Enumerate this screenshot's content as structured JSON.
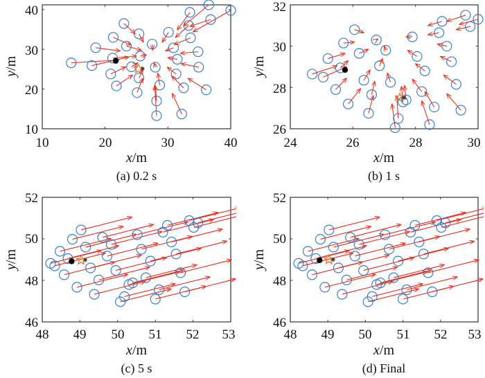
{
  "colors": {
    "agent": "#3a7fd0",
    "velocity": "#e8301e",
    "frame": "#333333",
    "leader": "#000000",
    "target": "#e07020"
  },
  "chart_data": [
    {
      "type": "scatter",
      "panel": "a",
      "caption": "(a) 0.2 s",
      "xlabel_var": "x",
      "ylabel_var": "y",
      "unit": "m",
      "xlim": [
        10,
        40
      ],
      "ylim": [
        10,
        41.2
      ],
      "xticks": [
        10,
        20,
        30,
        40
      ],
      "yticks": [
        10,
        20,
        30,
        40
      ],
      "xtick_labels": [
        "10",
        "20",
        "30",
        "40"
      ],
      "ytick_labels": [
        "10",
        "20",
        "30",
        "40"
      ],
      "leader": [
        21.7,
        27.1
      ],
      "target": [
        25.3,
        25.1
      ],
      "agents": [
        [
          14.6,
          26.6,
          22.2,
          27.3
        ],
        [
          17.9,
          25.9,
          23.8,
          28.1
        ],
        [
          18.5,
          30.4,
          22.4,
          29.6
        ],
        [
          21.3,
          33.0,
          24.1,
          31.1
        ],
        [
          23.0,
          36.5,
          24.8,
          33.9
        ],
        [
          25.4,
          33.9,
          26.1,
          31.8
        ],
        [
          21.2,
          27.8,
          25.0,
          28.3
        ],
        [
          23.4,
          30.8,
          25.8,
          29.8
        ],
        [
          20.9,
          23.8,
          23.3,
          25.6
        ],
        [
          21.8,
          20.8,
          24.4,
          23.5
        ],
        [
          24.2,
          25.6,
          25.2,
          26.6
        ],
        [
          25.6,
          28.3,
          26.6,
          28.6
        ],
        [
          25.4,
          22.8,
          26.0,
          24.8
        ],
        [
          25.1,
          19.1,
          26.0,
          22.7
        ],
        [
          27.5,
          31.3,
          27.6,
          29.8
        ],
        [
          28.0,
          25.5,
          27.8,
          26.6
        ],
        [
          28.7,
          21.0,
          28.4,
          24.0
        ],
        [
          28.2,
          17.0,
          28.0,
          20.8
        ],
        [
          28.2,
          13.3,
          27.9,
          21.0
        ],
        [
          30.1,
          34.3,
          29.1,
          31.8
        ],
        [
          30.9,
          30.4,
          29.6,
          29.6
        ],
        [
          31.5,
          27.5,
          30.0,
          27.9
        ],
        [
          31.3,
          23.8,
          29.9,
          25.5
        ],
        [
          32.5,
          20.3,
          30.6,
          23.3
        ],
        [
          32.2,
          13.7,
          30.7,
          18.9
        ],
        [
          33.5,
          39.3,
          31.5,
          34.9
        ],
        [
          33.3,
          36.0,
          31.2,
          33.0
        ],
        [
          33.6,
          32.9,
          31.0,
          31.2
        ],
        [
          34.8,
          29.4,
          32.0,
          29.0
        ],
        [
          34.9,
          25.5,
          32.1,
          26.4
        ],
        [
          36.1,
          19.8,
          33.2,
          22.7
        ],
        [
          36.5,
          41.2,
          32.5,
          35.9
        ],
        [
          36.8,
          37.5,
          33.5,
          35.8
        ],
        [
          40.0,
          39.8,
          34.0,
          34.4
        ]
      ]
    },
    {
      "type": "scatter",
      "panel": "b",
      "caption": "(b) 1 s",
      "xlabel_var": "x",
      "ylabel_var": "y",
      "unit": "m",
      "xlim": [
        24,
        30
      ],
      "ylim": [
        26,
        32
      ],
      "xticks": [
        24,
        26,
        28,
        30
      ],
      "yticks": [
        26,
        28,
        30,
        32
      ],
      "xtick_labels": [
        "24",
        "26",
        "28",
        "30"
      ],
      "ytick_labels": [
        "26",
        "28",
        "30",
        "32"
      ],
      "leader": [
        25.75,
        28.85
      ],
      "target": [
        27.5,
        27.5
      ],
      "agents": [
        [
          24.7,
          28.65,
          25.5,
          29.05
        ],
        [
          25.05,
          28.5,
          25.8,
          29.0
        ],
        [
          25.2,
          29.4,
          25.75,
          29.65
        ],
        [
          25.45,
          27.9,
          25.8,
          28.45
        ],
        [
          25.6,
          28.95,
          25.85,
          29.3
        ],
        [
          25.7,
          30.15,
          26.05,
          30.2
        ],
        [
          25.85,
          27.2,
          26.25,
          27.95
        ],
        [
          26.05,
          30.8,
          26.35,
          30.65
        ],
        [
          26.2,
          29.65,
          26.5,
          29.85
        ],
        [
          26.35,
          28.35,
          26.55,
          28.85
        ],
        [
          26.5,
          26.75,
          26.65,
          27.6
        ],
        [
          26.6,
          27.65,
          26.7,
          28.3
        ],
        [
          26.75,
          30.3,
          26.8,
          30.35
        ],
        [
          26.85,
          29.05,
          26.95,
          29.4
        ],
        [
          27.05,
          29.8,
          27.0,
          30.0
        ],
        [
          27.2,
          28.25,
          27.1,
          28.7
        ],
        [
          27.35,
          26.05,
          27.25,
          27.2
        ],
        [
          27.45,
          26.5,
          27.4,
          27.6
        ],
        [
          27.6,
          27.3,
          27.55,
          28.05
        ],
        [
          27.7,
          27.4,
          27.65,
          28.1
        ],
        [
          27.9,
          30.45,
          27.7,
          30.45
        ],
        [
          28.05,
          29.5,
          27.75,
          29.8
        ],
        [
          28.2,
          27.8,
          27.9,
          28.4
        ],
        [
          28.3,
          28.8,
          28.0,
          29.15
        ],
        [
          28.45,
          26.2,
          28.2,
          27.35
        ],
        [
          28.6,
          27.05,
          28.3,
          27.8
        ],
        [
          28.75,
          30.65,
          28.4,
          30.55
        ],
        [
          28.85,
          31.2,
          28.4,
          31.0
        ],
        [
          29.0,
          30.0,
          28.7,
          30.1
        ],
        [
          29.15,
          29.25,
          28.8,
          29.5
        ],
        [
          29.3,
          28.15,
          28.9,
          28.6
        ],
        [
          29.45,
          26.9,
          29.0,
          27.7
        ],
        [
          29.6,
          31.5,
          29.0,
          31.2
        ],
        [
          29.75,
          30.95,
          29.3,
          30.8
        ],
        [
          30.0,
          31.3,
          29.4,
          31.05
        ]
      ]
    },
    {
      "type": "scatter",
      "panel": "c",
      "caption": "(c) 5 s",
      "xlabel_var": "x",
      "ylabel_var": "y",
      "unit": "m",
      "xlim": [
        48,
        53
      ],
      "ylim": [
        46,
        52
      ],
      "xticks": [
        48,
        49,
        50,
        51,
        52,
        53
      ],
      "yticks": [
        46,
        48,
        50,
        52
      ],
      "xtick_labels": [
        "48",
        "49",
        "50",
        "51",
        "52",
        "53"
      ],
      "ytick_labels": [
        "46",
        "48",
        "50",
        "52"
      ],
      "leader": [
        48.78,
        48.92
      ],
      "target": [
        49.03,
        48.98
      ],
      "agents": [
        [
          48.22,
          48.82
        ],
        [
          48.33,
          48.7
        ],
        [
          48.47,
          49.4
        ],
        [
          48.58,
          48.27
        ],
        [
          48.68,
          49.05
        ],
        [
          48.8,
          49.98
        ],
        [
          48.92,
          47.67
        ],
        [
          49.03,
          50.43
        ],
        [
          49.15,
          49.6
        ],
        [
          49.28,
          48.6
        ],
        [
          49.38,
          47.33
        ],
        [
          49.5,
          48.02
        ],
        [
          49.6,
          50.07
        ],
        [
          49.72,
          49.17
        ],
        [
          49.83,
          49.73
        ],
        [
          49.95,
          48.48
        ],
        [
          50.07,
          46.97
        ],
        [
          50.18,
          47.22
        ],
        [
          50.3,
          47.8
        ],
        [
          50.4,
          47.88
        ],
        [
          50.52,
          50.2
        ],
        [
          50.63,
          49.5
        ],
        [
          50.75,
          48.13
        ],
        [
          50.87,
          48.93
        ],
        [
          51.0,
          47.1
        ],
        [
          51.1,
          47.55
        ],
        [
          51.2,
          50.32
        ],
        [
          51.32,
          50.65
        ],
        [
          51.43,
          49.85
        ],
        [
          51.55,
          49.27
        ],
        [
          51.67,
          48.37
        ],
        [
          51.78,
          47.45
        ],
        [
          51.9,
          50.88
        ],
        [
          52.02,
          50.55
        ],
        [
          52.13,
          50.77
        ]
      ],
      "velocity": [
        1.35,
        0.62
      ]
    },
    {
      "type": "scatter",
      "panel": "d",
      "caption": "(d) Final",
      "xlabel_var": "x",
      "ylabel_var": "y",
      "unit": "m",
      "xlim": [
        48,
        53
      ],
      "ylim": [
        46,
        52
      ],
      "xticks": [
        48,
        49,
        50,
        51,
        52,
        53
      ],
      "yticks": [
        46,
        48,
        50,
        52
      ],
      "xtick_labels": [
        "48",
        "49",
        "50",
        "51",
        "52",
        "53"
      ],
      "ytick_labels": [
        "46",
        "48",
        "50",
        "52"
      ],
      "leader": [
        48.78,
        48.97
      ],
      "target": [
        49.03,
        49.0
      ],
      "agents": [
        [
          48.22,
          48.82
        ],
        [
          48.33,
          48.7
        ],
        [
          48.47,
          49.4
        ],
        [
          48.58,
          48.27
        ],
        [
          48.68,
          49.05
        ],
        [
          48.8,
          49.98
        ],
        [
          48.92,
          47.67
        ],
        [
          49.03,
          50.43
        ],
        [
          49.15,
          49.6
        ],
        [
          49.28,
          48.6
        ],
        [
          49.38,
          47.33
        ],
        [
          49.5,
          48.02
        ],
        [
          49.6,
          50.07
        ],
        [
          49.72,
          49.17
        ],
        [
          49.83,
          49.73
        ],
        [
          49.95,
          48.48
        ],
        [
          50.07,
          46.97
        ],
        [
          50.18,
          47.22
        ],
        [
          50.3,
          47.8
        ],
        [
          50.4,
          47.88
        ],
        [
          50.52,
          50.2
        ],
        [
          50.63,
          49.5
        ],
        [
          50.75,
          48.13
        ],
        [
          50.87,
          48.93
        ],
        [
          51.0,
          47.1
        ],
        [
          51.1,
          47.55
        ],
        [
          51.2,
          50.32
        ],
        [
          51.32,
          50.65
        ],
        [
          51.43,
          49.85
        ],
        [
          51.55,
          49.27
        ],
        [
          51.67,
          48.37
        ],
        [
          51.78,
          47.45
        ],
        [
          51.9,
          50.88
        ],
        [
          52.02,
          50.55
        ],
        [
          52.13,
          50.77
        ]
      ],
      "velocity": [
        1.35,
        0.62
      ]
    }
  ]
}
